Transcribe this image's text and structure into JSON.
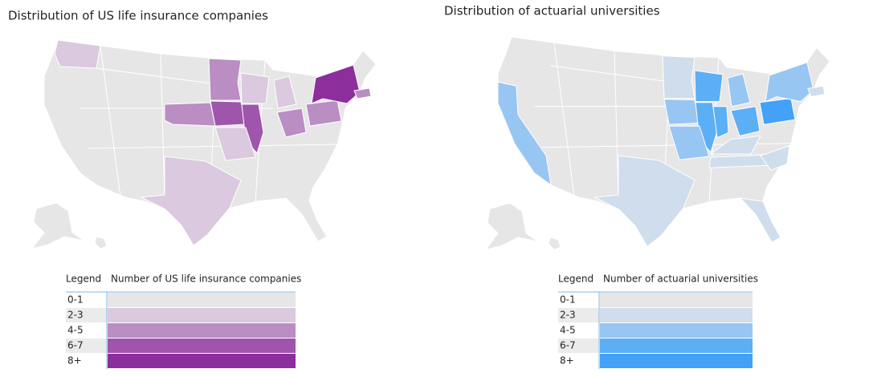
{
  "maps": [
    {
      "title": "Distribution of US life insurance companies",
      "legend": {
        "header": [
          "Legend",
          "Number of US life insurance companies"
        ],
        "rows": [
          {
            "label": "0-1",
            "color": "#e6e6e6"
          },
          {
            "label": "2-3",
            "color": "#dac9df"
          },
          {
            "label": "4-5",
            "color": "#ba8dc3"
          },
          {
            "label": "6-7",
            "color": "#9e55ab"
          },
          {
            "label": "8+",
            "color": "#8c2e9c"
          }
        ]
      }
    },
    {
      "title": "Distribution of actuarial universities",
      "legend": {
        "header": [
          "Legend",
          "Number of actuarial universities"
        ],
        "rows": [
          {
            "label": "0-1",
            "color": "#e6e6e6"
          },
          {
            "label": "2-3",
            "color": "#cfddec"
          },
          {
            "label": "4-5",
            "color": "#98c6f2"
          },
          {
            "label": "6-7",
            "color": "#5caef5"
          },
          {
            "label": "8+",
            "color": "#43a1f7"
          }
        ]
      }
    }
  ]
}
